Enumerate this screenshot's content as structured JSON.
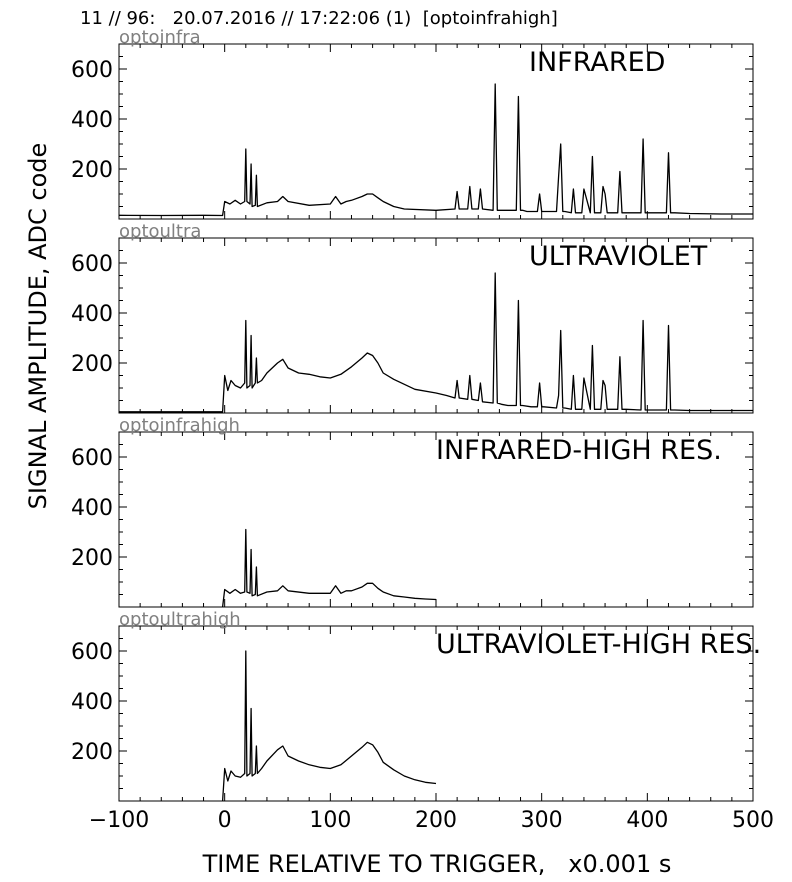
{
  "header": "11 // 96:   20.07.2016 // 17:22:06 (1)  [optoinfrahigh]",
  "chart_data": {
    "type": "line",
    "xlabel": "TIME RELATIVE TO TRIGGER,   x0.001 s",
    "ylabel": "SIGNAL AMPLITUDE,  ADC code",
    "xlim": [
      -100,
      500
    ],
    "ylim": [
      0,
      700
    ],
    "xticks": [
      -100,
      0,
      100,
      200,
      300,
      400,
      500
    ],
    "xtick_labels": [
      "−100",
      "0",
      "100",
      "200",
      "300",
      "400",
      "500"
    ],
    "yticks": [
      200,
      400,
      600
    ],
    "grid": false,
    "panels": [
      {
        "id": "optoinfra",
        "title": "INFRARED",
        "color": "#000000",
        "x": [
          -100,
          -60,
          -20,
          -2,
          0,
          5,
          10,
          15,
          19,
          20,
          21,
          24,
          25,
          26,
          29,
          30,
          31,
          40,
          50,
          55,
          60,
          80,
          100,
          105,
          110,
          115,
          120,
          130,
          135,
          140,
          145,
          150,
          160,
          170,
          200,
          218,
          220,
          222,
          230,
          232,
          234,
          240,
          242,
          244,
          254,
          256,
          258,
          262,
          268,
          276,
          278,
          280,
          282,
          286,
          296,
          298,
          300,
          302,
          314,
          316,
          318,
          320,
          322,
          328,
          330,
          332,
          338,
          340,
          346,
          348,
          350,
          356,
          358,
          360,
          362,
          372,
          374,
          376,
          380,
          394,
          396,
          398,
          402,
          418,
          420,
          422,
          426,
          440,
          470,
          500
        ],
        "y": [
          15,
          14,
          15,
          14,
          70,
          60,
          75,
          60,
          70,
          280,
          70,
          60,
          220,
          50,
          55,
          175,
          50,
          65,
          70,
          90,
          70,
          55,
          60,
          90,
          60,
          70,
          75,
          90,
          100,
          100,
          85,
          70,
          50,
          40,
          35,
          40,
          110,
          40,
          40,
          130,
          40,
          40,
          120,
          40,
          35,
          540,
          35,
          35,
          35,
          35,
          490,
          35,
          35,
          30,
          30,
          100,
          30,
          30,
          30,
          170,
          300,
          30,
          30,
          25,
          120,
          25,
          25,
          120,
          25,
          250,
          25,
          25,
          130,
          100,
          25,
          25,
          190,
          25,
          25,
          25,
          320,
          25,
          25,
          25,
          265,
          25,
          25,
          22,
          20,
          20
        ]
      },
      {
        "id": "optoultra",
        "title": "ULTRAVIOLET",
        "color": "#000000",
        "x": [
          -100,
          -40,
          -2,
          0,
          3,
          6,
          10,
          15,
          19,
          20,
          21,
          24,
          25,
          26,
          29,
          30,
          31,
          35,
          40,
          50,
          55,
          60,
          70,
          80,
          90,
          100,
          110,
          120,
          130,
          135,
          140,
          145,
          150,
          160,
          170,
          180,
          200,
          210,
          218,
          220,
          222,
          230,
          232,
          234,
          240,
          242,
          244,
          254,
          256,
          258,
          262,
          268,
          276,
          278,
          280,
          282,
          290,
          296,
          298,
          300,
          302,
          314,
          316,
          318,
          320,
          322,
          328,
          330,
          332,
          338,
          340,
          346,
          348,
          350,
          356,
          358,
          360,
          362,
          372,
          374,
          376,
          380,
          394,
          396,
          398,
          402,
          418,
          420,
          422,
          426,
          440,
          470,
          500
        ],
        "y": [
          5,
          5,
          5,
          150,
          90,
          130,
          110,
          100,
          120,
          370,
          100,
          110,
          310,
          100,
          120,
          220,
          120,
          130,
          160,
          200,
          215,
          180,
          160,
          155,
          145,
          140,
          155,
          185,
          220,
          240,
          230,
          200,
          160,
          135,
          115,
          95,
          80,
          70,
          60,
          130,
          60,
          55,
          150,
          55,
          50,
          120,
          45,
          40,
          560,
          40,
          35,
          30,
          30,
          450,
          30,
          30,
          25,
          25,
          120,
          25,
          25,
          20,
          70,
          330,
          20,
          20,
          15,
          150,
          15,
          15,
          140,
          15,
          270,
          15,
          15,
          130,
          110,
          15,
          15,
          225,
          15,
          15,
          12,
          370,
          12,
          12,
          12,
          350,
          12,
          12,
          10,
          10,
          10
        ]
      },
      {
        "id": "optoinfrahigh",
        "title": "INFRARED-HIGH RES.",
        "color": "#000000",
        "x": [
          -2,
          0,
          5,
          10,
          15,
          19,
          20,
          21,
          24,
          25,
          26,
          29,
          30,
          31,
          40,
          50,
          55,
          60,
          80,
          100,
          105,
          110,
          115,
          120,
          130,
          135,
          140,
          145,
          150,
          160,
          170,
          180,
          190,
          200
        ],
        "y": [
          0,
          70,
          55,
          70,
          55,
          60,
          310,
          60,
          55,
          230,
          45,
          50,
          160,
          45,
          60,
          65,
          85,
          65,
          55,
          55,
          85,
          55,
          65,
          65,
          80,
          95,
          95,
          75,
          60,
          45,
          40,
          35,
          32,
          30
        ]
      },
      {
        "id": "optoultrahigh",
        "title": "ULTRAVIOLET-HIGH RES.",
        "color": "#000000",
        "x": [
          -2,
          0,
          3,
          6,
          10,
          15,
          19,
          20,
          21,
          24,
          25,
          26,
          29,
          30,
          31,
          35,
          40,
          50,
          55,
          60,
          70,
          80,
          90,
          100,
          110,
          120,
          130,
          135,
          140,
          145,
          150,
          160,
          170,
          180,
          190,
          200
        ],
        "y": [
          0,
          130,
          80,
          120,
          100,
          95,
          110,
          600,
          100,
          110,
          370,
          100,
          110,
          220,
          110,
          130,
          160,
          205,
          220,
          180,
          160,
          145,
          135,
          130,
          145,
          180,
          215,
          235,
          225,
          195,
          155,
          125,
          100,
          85,
          75,
          70
        ]
      }
    ]
  }
}
